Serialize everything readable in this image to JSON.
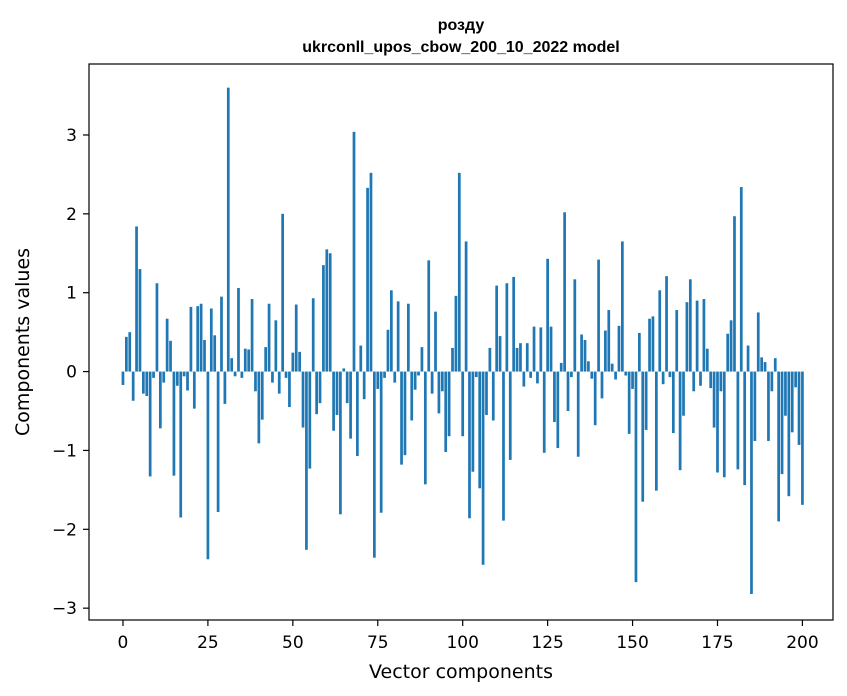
{
  "chart_data": {
    "type": "bar",
    "title_line1": "розду",
    "title_line2": "ukrconll_upos_cbow_200_10_2022 model",
    "xlabel": "Vector components",
    "ylabel": "Components values",
    "xlim": [
      -10,
      209
    ],
    "ylim": [
      -3.15,
      3.9
    ],
    "xticks": [
      0,
      25,
      50,
      75,
      100,
      125,
      150,
      175,
      200
    ],
    "xtick_labels": [
      "0",
      "25",
      "50",
      "75",
      "100",
      "125",
      "150",
      "175",
      "200"
    ],
    "yticks": [
      3,
      2,
      1,
      0,
      -1,
      -2,
      -3
    ],
    "ytick_labels": [
      "3",
      "2",
      "1",
      "0",
      "−1",
      "−2",
      "−3"
    ],
    "bar_color": "#1f77b4",
    "grid": false,
    "x_start": 0,
    "values": [
      -0.17,
      0.44,
      0.5,
      -0.37,
      1.84,
      1.3,
      -0.28,
      -0.31,
      -1.33,
      -0.08,
      1.12,
      -0.72,
      -0.14,
      0.67,
      0.39,
      -1.32,
      -0.18,
      -1.85,
      -0.06,
      -0.24,
      0.82,
      -0.47,
      0.83,
      0.86,
      0.4,
      -2.38,
      0.8,
      0.46,
      -1.78,
      0.95,
      -0.41,
      3.6,
      0.17,
      -0.06,
      1.06,
      -0.08,
      0.29,
      0.28,
      0.92,
      -0.25,
      -0.91,
      -0.61,
      0.31,
      0.86,
      -0.14,
      0.65,
      -0.28,
      2.0,
      -0.08,
      -0.45,
      0.24,
      0.85,
      0.25,
      -0.71,
      -2.26,
      -1.23,
      0.93,
      -0.54,
      -0.4,
      1.35,
      1.55,
      1.5,
      -0.75,
      -0.55,
      -1.81,
      0.04,
      -0.4,
      -0.85,
      3.04,
      -1.07,
      0.33,
      -0.35,
      2.33,
      2.52,
      -2.36,
      -0.22,
      -1.79,
      -0.08,
      0.53,
      1.03,
      -0.14,
      0.89,
      -1.18,
      -1.06,
      0.86,
      -0.62,
      -0.23,
      -0.05,
      0.31,
      -1.43,
      1.41,
      -0.28,
      0.76,
      -0.53,
      -0.25,
      -1.02,
      -0.82,
      0.3,
      0.96,
      2.52,
      -0.82,
      1.65,
      -1.86,
      -1.27,
      -0.07,
      -1.48,
      -2.45,
      -0.55,
      0.3,
      -0.62,
      1.09,
      0.45,
      -1.89,
      1.12,
      -1.12,
      1.2,
      0.3,
      0.36,
      -0.19,
      0.36,
      -0.08,
      0.57,
      -0.15,
      0.56,
      -1.03,
      1.43,
      0.57,
      -0.64,
      -0.97,
      0.11,
      2.02,
      -0.5,
      -0.07,
      1.17,
      -1.08,
      0.47,
      0.4,
      0.13,
      -0.09,
      -0.68,
      1.42,
      -0.34,
      0.52,
      0.78,
      0.1,
      -0.1,
      0.58,
      1.65,
      -0.05,
      -0.79,
      -0.22,
      -2.67,
      0.49,
      -1.65,
      -0.74,
      0.67,
      0.7,
      -1.51,
      1.03,
      -0.16,
      1.21,
      -0.07,
      -0.78,
      0.78,
      -1.25,
      -0.56,
      0.88,
      1.17,
      -0.25,
      0.9,
      -0.18,
      0.92,
      0.29,
      -0.21,
      -0.71,
      -1.28,
      -0.25,
      -1.34,
      0.48,
      0.65,
      1.97,
      -1.24,
      2.34,
      -1.44,
      0.33,
      -2.82,
      -0.88,
      0.75,
      0.18,
      0.12,
      -0.88,
      -0.25,
      0.17,
      -1.9,
      -1.3,
      -0.56,
      -1.58,
      -0.77,
      -0.2,
      -0.93,
      -1.69
    ]
  }
}
